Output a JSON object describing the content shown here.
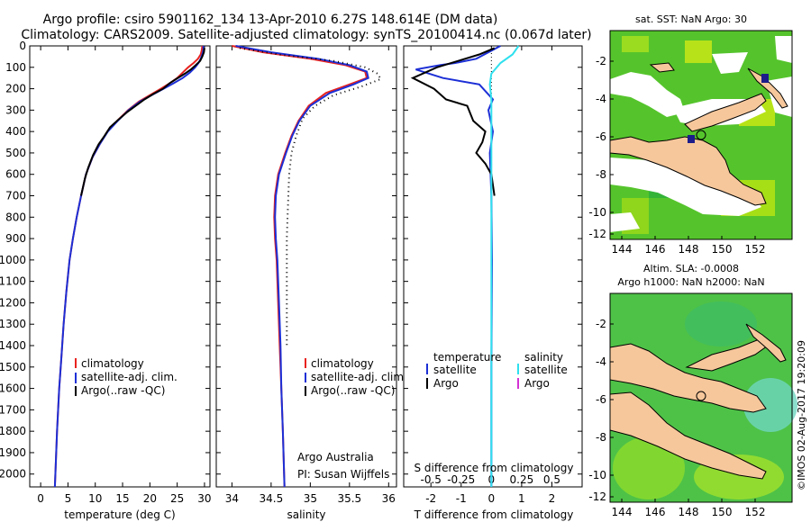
{
  "header": {
    "line1": "Argo profile: csiro 5901162_134 13-Apr-2010 6.27S 148.614E (DM data)",
    "line2": "Climatology: CARS2009. Satellite-adjusted climatology: synTS_20100414.nc (0.067d later)"
  },
  "colors": {
    "climatology": "#e8221f",
    "satellite": "#1c2fd6",
    "argo": "#000000",
    "sat_salinity": "#2fe0ee",
    "argo_salinity": "#d431d4",
    "land": "#f6c79b"
  },
  "chart_data": [
    {
      "type": "line",
      "name": "temperature_profile",
      "xlabel": "temperature (deg C)",
      "ylabel": "depth",
      "xlim": [
        -2,
        31
      ],
      "ylim": [
        2060,
        0
      ],
      "xticks": [
        0,
        5,
        10,
        15,
        20,
        25,
        30
      ],
      "yticks": [
        0,
        100,
        200,
        300,
        400,
        500,
        600,
        700,
        800,
        900,
        1000,
        1100,
        1200,
        1300,
        1400,
        1500,
        1600,
        1700,
        1800,
        1900,
        2000
      ],
      "series": [
        {
          "name": "climatology",
          "color": "#e8221f",
          "points": [
            [
              29.6,
              0
            ],
            [
              29.5,
              20
            ],
            [
              29.3,
              40
            ],
            [
              28.8,
              60
            ],
            [
              28.0,
              80
            ],
            [
              27.0,
              100
            ],
            [
              26.0,
              125
            ],
            [
              25.0,
              150
            ],
            [
              23.6,
              175
            ],
            [
              22.0,
              200
            ],
            [
              20.0,
              230
            ],
            [
              18.0,
              260
            ],
            [
              16.0,
              300
            ],
            [
              14.0,
              350
            ],
            [
              12.2,
              400
            ],
            [
              10.8,
              460
            ],
            [
              9.5,
              520
            ],
            [
              8.3,
              600
            ],
            [
              7.4,
              700
            ],
            [
              6.6,
              800
            ],
            [
              5.9,
              900
            ],
            [
              5.3,
              1000
            ],
            [
              4.7,
              1150
            ],
            [
              4.2,
              1300
            ],
            [
              3.8,
              1450
            ],
            [
              3.4,
              1600
            ],
            [
              3.0,
              1800
            ],
            [
              2.6,
              2060
            ]
          ]
        },
        {
          "name": "satellite-adj. clim.",
          "color": "#1c2fd6",
          "points": [
            [
              29.8,
              0
            ],
            [
              29.8,
              20
            ],
            [
              29.6,
              40
            ],
            [
              29.3,
              60
            ],
            [
              28.9,
              80
            ],
            [
              28.3,
              100
            ],
            [
              27.3,
              125
            ],
            [
              26.0,
              150
            ],
            [
              24.3,
              175
            ],
            [
              22.5,
              200
            ],
            [
              20.3,
              230
            ],
            [
              18.2,
              260
            ],
            [
              16.1,
              300
            ],
            [
              14.1,
              350
            ],
            [
              12.3,
              400
            ],
            [
              10.8,
              460
            ],
            [
              9.5,
              520
            ],
            [
              8.3,
              600
            ],
            [
              7.4,
              700
            ],
            [
              6.6,
              800
            ],
            [
              5.9,
              900
            ],
            [
              5.3,
              1000
            ],
            [
              4.7,
              1150
            ],
            [
              4.2,
              1300
            ],
            [
              3.8,
              1450
            ],
            [
              3.4,
              1600
            ],
            [
              3.0,
              1800
            ],
            [
              2.6,
              2060
            ]
          ]
        },
        {
          "name": "Argo(..raw -QC)",
          "color": "#000000",
          "points": [
            [
              30.0,
              10
            ],
            [
              29.9,
              30
            ],
            [
              29.6,
              50
            ],
            [
              29.2,
              70
            ],
            [
              28.4,
              90
            ],
            [
              27.5,
              110
            ],
            [
              26.4,
              130
            ],
            [
              24.8,
              155
            ],
            [
              23.6,
              175
            ],
            [
              22.4,
              200
            ],
            [
              20.6,
              225
            ],
            [
              19.0,
              250
            ],
            [
              17.4,
              280
            ],
            [
              15.8,
              310
            ],
            [
              14.2,
              345
            ],
            [
              12.7,
              380
            ],
            [
              11.7,
              420
            ],
            [
              10.6,
              460
            ],
            [
              9.6,
              510
            ],
            [
              8.7,
              570
            ],
            [
              8.1,
              620
            ],
            [
              7.4,
              700
            ]
          ]
        }
      ],
      "legend": [
        "climatology",
        "satellite-adj. clim.",
        "Argo(..raw -QC)"
      ]
    },
    {
      "type": "line",
      "name": "salinity_profile",
      "xlabel": "salinity",
      "xlim": [
        33.8,
        36.1
      ],
      "ylim": [
        2060,
        0
      ],
      "xticks": [
        34,
        34.5,
        35,
        35.5,
        36
      ],
      "series": [
        {
          "name": "climatology",
          "color": "#e8221f",
          "points": [
            [
              34.0,
              0
            ],
            [
              34.4,
              30
            ],
            [
              35.0,
              60
            ],
            [
              35.45,
              90
            ],
            [
              35.7,
              120
            ],
            [
              35.72,
              150
            ],
            [
              35.5,
              180
            ],
            [
              35.2,
              220
            ],
            [
              34.98,
              280
            ],
            [
              34.85,
              350
            ],
            [
              34.76,
              420
            ],
            [
              34.68,
              500
            ],
            [
              34.59,
              600
            ],
            [
              34.55,
              700
            ],
            [
              34.54,
              800
            ],
            [
              34.55,
              900
            ],
            [
              34.57,
              1000
            ],
            [
              34.59,
              1200
            ],
            [
              34.61,
              1400
            ],
            [
              34.63,
              1600
            ],
            [
              34.65,
              1800
            ],
            [
              34.67,
              2060
            ]
          ]
        },
        {
          "name": "satellite-adj. clim.",
          "color": "#1c2fd6",
          "points": [
            [
              34.05,
              0
            ],
            [
              34.5,
              30
            ],
            [
              35.1,
              60
            ],
            [
              35.5,
              90
            ],
            [
              35.72,
              120
            ],
            [
              35.74,
              150
            ],
            [
              35.55,
              180
            ],
            [
              35.25,
              220
            ],
            [
              35.0,
              280
            ],
            [
              34.86,
              350
            ],
            [
              34.77,
              420
            ],
            [
              34.69,
              500
            ],
            [
              34.6,
              600
            ],
            [
              34.56,
              700
            ],
            [
              34.55,
              800
            ],
            [
              34.56,
              900
            ],
            [
              34.58,
              1000
            ],
            [
              34.6,
              1200
            ],
            [
              34.62,
              1400
            ],
            [
              34.63,
              1600
            ],
            [
              34.65,
              1800
            ],
            [
              34.67,
              2060
            ]
          ]
        },
        {
          "name": "Argo(..raw -QC)",
          "color": "#000000",
          "points": [
            [
              34.1,
              10
            ],
            [
              34.6,
              40
            ],
            [
              35.3,
              70
            ],
            [
              35.7,
              100
            ],
            [
              35.86,
              130
            ],
            [
              35.9,
              155
            ],
            [
              35.65,
              190
            ],
            [
              35.3,
              230
            ],
            [
              35.06,
              280
            ],
            [
              34.9,
              340
            ],
            [
              34.82,
              420
            ],
            [
              34.76,
              500
            ],
            [
              34.73,
              600
            ],
            [
              34.72,
              700
            ],
            [
              34.71,
              800
            ],
            [
              34.7,
              900
            ],
            [
              34.7,
              1000
            ],
            [
              34.7,
              1100
            ],
            [
              34.7,
              1200
            ],
            [
              34.7,
              1300
            ],
            [
              34.7,
              1400
            ]
          ]
        }
      ],
      "legend": [
        "climatology",
        "satellite-adj. clim.",
        "Argo(..raw -QC)"
      ],
      "credit1": "Argo Australia",
      "credit2": "PI: Susan Wijffels"
    },
    {
      "type": "line",
      "name": "difference_from_climatology",
      "xlabel": "T difference from climatology",
      "xlabel_top": "S difference from climatology",
      "xlim": [
        -2.9,
        3.0
      ],
      "ylim": [
        2060,
        0
      ],
      "xticks": [
        -2,
        -1,
        0,
        1,
        2
      ],
      "sticks_labels": [
        "-0.5",
        "-0.25",
        "0",
        "0.25",
        "0.5"
      ],
      "sticks": [
        -2,
        -1,
        0,
        1,
        2
      ],
      "series": [
        {
          "name": "temperature satellite",
          "color": "#1c2fd6",
          "points": [
            [
              0.3,
              0
            ],
            [
              -0.5,
              60
            ],
            [
              -1.2,
              80
            ],
            [
              -1.7,
              90
            ],
            [
              -2.5,
              110
            ],
            [
              -1.6,
              150
            ],
            [
              -0.4,
              180
            ],
            [
              0.05,
              250
            ],
            [
              -0.1,
              300
            ],
            [
              0.05,
              400
            ],
            [
              -0.05,
              500
            ],
            [
              0.0,
              700
            ],
            [
              0.02,
              1000
            ],
            [
              0.0,
              1500
            ],
            [
              0.0,
              2060
            ]
          ]
        },
        {
          "name": "temperature Argo",
          "color": "#000000",
          "points": [
            [
              0.1,
              10
            ],
            [
              -0.4,
              40
            ],
            [
              -1.1,
              70
            ],
            [
              -1.8,
              100
            ],
            [
              -2.6,
              150
            ],
            [
              -1.9,
              200
            ],
            [
              -1.5,
              250
            ],
            [
              -0.8,
              280
            ],
            [
              -0.6,
              350
            ],
            [
              -0.2,
              400
            ],
            [
              -0.3,
              450
            ],
            [
              -0.5,
              500
            ],
            [
              -0.2,
              550
            ],
            [
              0.0,
              600
            ],
            [
              0.1,
              700
            ]
          ]
        },
        {
          "name": "salinity satellite",
          "color": "#2fe0ee",
          "points": [
            [
              0.9,
              0
            ],
            [
              0.7,
              40
            ],
            [
              0.3,
              80
            ],
            [
              0.0,
              130
            ],
            [
              -0.05,
              180
            ],
            [
              0.0,
              250
            ],
            [
              0.0,
              400
            ],
            [
              0.0,
              700
            ],
            [
              0.0,
              1000
            ],
            [
              0.0,
              1500
            ],
            [
              0.0,
              2060
            ]
          ]
        },
        {
          "name": "salinity Argo",
          "color": "#d431d4",
          "points": []
        }
      ],
      "legend_temperature_title": "temperature",
      "legend_salinity_title": "salinity",
      "legend_items": {
        "satellite": "satellite",
        "argo": "Argo"
      }
    }
  ],
  "maps": {
    "top": {
      "title": "sat. SST: NaN Argo: 30",
      "xticks": [
        "144",
        "146",
        "148",
        "150",
        "152"
      ],
      "yticks": [
        "-2",
        "-4",
        "-6",
        "-8",
        "-10",
        "-12"
      ]
    },
    "bottom": {
      "title1": "Altim. SLA: -0.0008",
      "title2": "Argo h1000: NaN h2000: NaN",
      "xticks": [
        "144",
        "146",
        "148",
        "150",
        "152"
      ],
      "yticks": [
        "-2",
        "-4",
        "-6",
        "-8",
        "-10",
        "-12"
      ]
    },
    "credit": "©IMOS 02-Aug-2017 19:20:09"
  }
}
